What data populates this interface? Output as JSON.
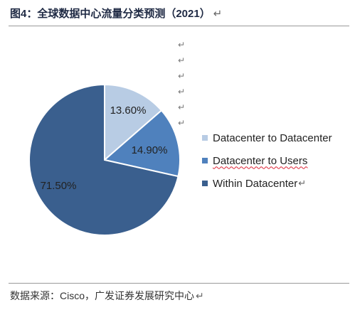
{
  "header": {
    "title": "图4：全球数据中心流量分类预测（2021）",
    "return_mark": "↵"
  },
  "return_marks": [
    "↵",
    "↵",
    "↵",
    "↵",
    "↵",
    "↵"
  ],
  "legend": {
    "items": [
      {
        "label": "Datacenter to Datacenter",
        "color": "#b8cce4"
      },
      {
        "label": "Datacenter to Users",
        "color": "#4f81bd"
      },
      {
        "label": "Within Datacenter",
        "color": "#3a5f8e"
      }
    ],
    "return_mark": "↵"
  },
  "chart_data": {
    "type": "pie",
    "title": "图4：全球数据中心流量分类预测（2021）",
    "slices": [
      {
        "label": "Datacenter to Datacenter",
        "value": 13.6,
        "display": "13.60%",
        "color": "#b8cce4"
      },
      {
        "label": "Datacenter to Users",
        "value": 14.9,
        "display": "14.90%",
        "color": "#4f81bd"
      },
      {
        "label": "Within Datacenter",
        "value": 71.5,
        "display": "71.50%",
        "color": "#3a5f8e"
      }
    ],
    "legend_position": "right"
  },
  "footer": {
    "source": "数据来源：Cisco，广发证券发展研究中心",
    "return_mark": "↵"
  }
}
